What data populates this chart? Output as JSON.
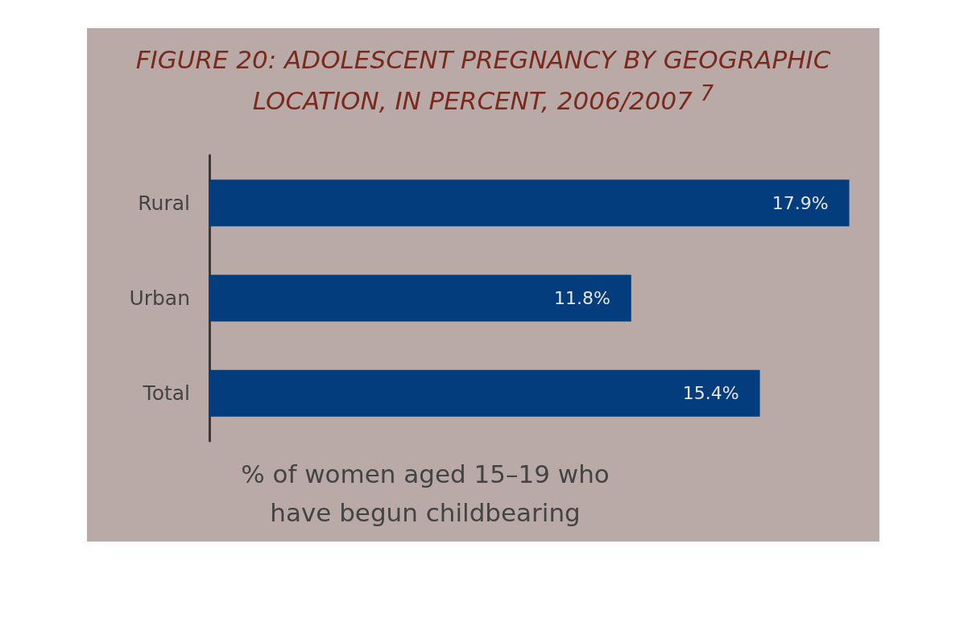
{
  "chart_data": {
    "type": "bar",
    "orientation": "horizontal",
    "title": "FIGURE 20: ADOLESCENT PREGNANCY BY GEOGRAPHIC LOCATION, IN PERCENT, 2006/2007 $^{7}$",
    "xlabel": "% of women aged 15–19 who have begun childbearing",
    "categories": [
      "Rural",
      "Urban",
      "Total"
    ],
    "values": [
      17.9,
      11.8,
      15.4
    ],
    "value_labels": [
      "17.9%",
      "11.8%",
      "15.4%"
    ],
    "color": "#033d7e",
    "tick_labels": "y",
    "grid": false
  }
}
